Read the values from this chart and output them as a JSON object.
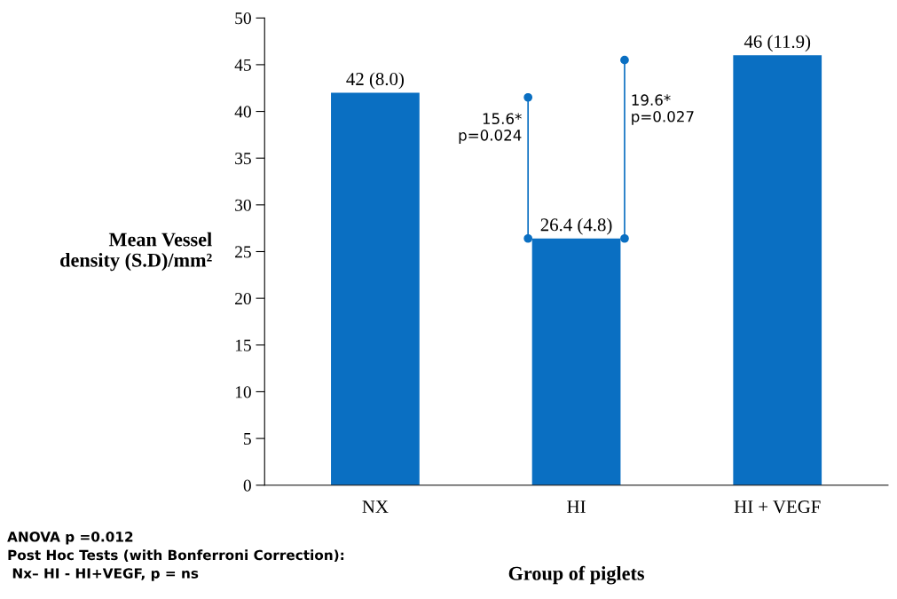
{
  "chart_data": {
    "type": "bar",
    "categories": [
      "NX",
      "HI",
      "HI + VEGF"
    ],
    "values": [
      42,
      26.4,
      46
    ],
    "value_labels": [
      "42 (8.0)",
      "26.4 (4.8)",
      "46 (11.9)"
    ],
    "color": "#0a6fc2",
    "xlabel": "Group of piglets",
    "ylabel": "Mean Vessel\ndensity (S.D)/mm²",
    "ylim": [
      0,
      50
    ],
    "yticks": [
      0,
      5,
      10,
      15,
      20,
      25,
      30,
      35,
      40,
      45,
      50
    ],
    "grid": false,
    "annotations": [
      "15.6*\np=0.024",
      "19.6*\np=0.027",
      "ANOVA p =0.012\nPost Hoc Tests (with Bonferroni Correction):\n Nx– HI - HI+VEGF, p = ns"
    ]
  }
}
